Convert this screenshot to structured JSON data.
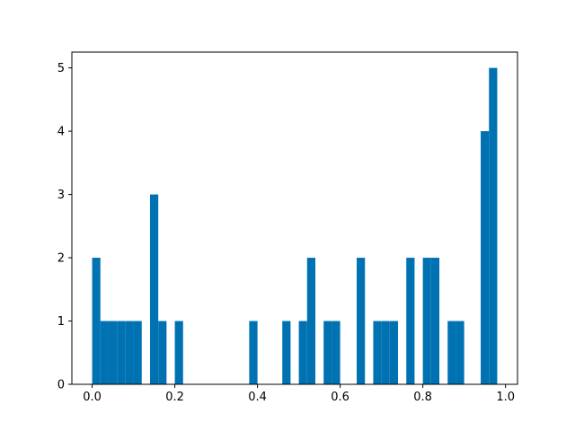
{
  "chart_data": {
    "type": "bar",
    "title": "",
    "xlabel": "",
    "ylabel": "",
    "xlim": [
      -0.049,
      1.029
    ],
    "ylim": [
      0,
      5.25
    ],
    "grid": false,
    "bar_color": "#0072b2",
    "bin_width": 0.02,
    "bins": [
      {
        "x": 0.0,
        "count": 2
      },
      {
        "x": 0.02,
        "count": 1
      },
      {
        "x": 0.04,
        "count": 1
      },
      {
        "x": 0.06,
        "count": 1
      },
      {
        "x": 0.08,
        "count": 1
      },
      {
        "x": 0.1,
        "count": 1
      },
      {
        "x": 0.14,
        "count": 3
      },
      {
        "x": 0.16,
        "count": 1
      },
      {
        "x": 0.2,
        "count": 1
      },
      {
        "x": 0.38,
        "count": 1
      },
      {
        "x": 0.46,
        "count": 1
      },
      {
        "x": 0.5,
        "count": 1
      },
      {
        "x": 0.52,
        "count": 2
      },
      {
        "x": 0.56,
        "count": 1
      },
      {
        "x": 0.58,
        "count": 1
      },
      {
        "x": 0.64,
        "count": 2
      },
      {
        "x": 0.68,
        "count": 1
      },
      {
        "x": 0.7,
        "count": 1
      },
      {
        "x": 0.72,
        "count": 1
      },
      {
        "x": 0.76,
        "count": 2
      },
      {
        "x": 0.8,
        "count": 2
      },
      {
        "x": 0.82,
        "count": 2
      },
      {
        "x": 0.86,
        "count": 1
      },
      {
        "x": 0.88,
        "count": 1
      },
      {
        "x": 0.94,
        "count": 4
      },
      {
        "x": 0.96,
        "count": 5
      }
    ],
    "x_ticks": [
      "0.0",
      "0.2",
      "0.4",
      "0.6",
      "0.8",
      "1.0"
    ],
    "y_ticks": [
      "0",
      "1",
      "2",
      "3",
      "4",
      "5"
    ]
  }
}
